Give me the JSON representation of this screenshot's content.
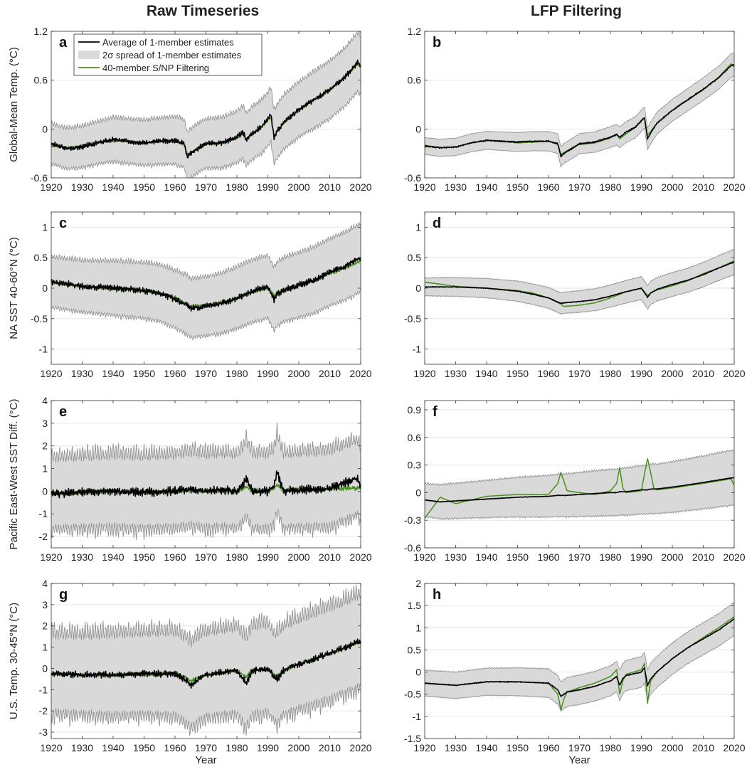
{
  "column_titles": [
    "Raw Timeseries",
    "LFP Filtering"
  ],
  "legend": {
    "avg_label": "Average of 1-member estimates",
    "spread_label": "2σ spread of 1-member estimates",
    "snp_label": "40-member S/NP Filtering"
  },
  "colors": {
    "avg": "#000000",
    "spread_fill": "#d9d9d9",
    "spread_edge": "#8c8c8c",
    "snp": "#4a8f1e",
    "grid": "#e6e6e6"
  },
  "chart_data": [
    {
      "panel": "a",
      "type": "line",
      "column": "Raw Timeseries",
      "ylabel": "Global-Mean Temp. (°C)",
      "xlabel": "",
      "xlim": [
        1920,
        2020
      ],
      "ylim": [
        -0.6,
        1.2
      ],
      "xticks": [
        "1920",
        "1930",
        "1940",
        "1950",
        "1960",
        "1970",
        "1980",
        "1990",
        "2000",
        "2010",
        "2020"
      ],
      "yticks": [
        "-0.6",
        "0",
        "0.6",
        "1.2"
      ],
      "ytick_values": [
        -0.6,
        0,
        0.6,
        1.2
      ],
      "spread_half_width": 0.22,
      "spread_growth": 0.12,
      "spread_seasonal": 0.07,
      "avg_noise": 0.03,
      "x": [
        1920,
        1925,
        1930,
        1935,
        1940,
        1945,
        1950,
        1955,
        1960,
        1963,
        1964,
        1965,
        1968,
        1970,
        1975,
        1980,
        1982,
        1983,
        1985,
        1988,
        1990,
        1991,
        1992,
        1993,
        1995,
        2000,
        2005,
        2010,
        2015,
        2019,
        2020
      ],
      "series": [
        {
          "role": "average",
          "values": [
            -0.18,
            -0.24,
            -0.22,
            -0.17,
            -0.13,
            -0.15,
            -0.17,
            -0.15,
            -0.14,
            -0.18,
            -0.34,
            -0.3,
            -0.22,
            -0.18,
            -0.17,
            -0.1,
            -0.04,
            -0.13,
            -0.05,
            0.03,
            0.12,
            0.18,
            -0.1,
            -0.03,
            0.08,
            0.24,
            0.36,
            0.48,
            0.64,
            0.82,
            0.78
          ]
        },
        {
          "role": "snp",
          "values": [
            -0.2,
            -0.23,
            -0.22,
            -0.17,
            -0.14,
            -0.15,
            -0.17,
            -0.16,
            -0.15,
            -0.18,
            -0.31,
            -0.29,
            -0.22,
            -0.19,
            -0.17,
            -0.11,
            -0.06,
            -0.12,
            -0.06,
            0.02,
            0.11,
            0.14,
            -0.08,
            -0.03,
            0.07,
            0.23,
            0.36,
            0.48,
            0.64,
            0.8,
            0.76
          ]
        }
      ]
    },
    {
      "panel": "b",
      "type": "line",
      "column": "LFP Filtering",
      "ylabel": "",
      "xlabel": "",
      "xlim": [
        1920,
        2020
      ],
      "ylim": [
        -0.6,
        1.2
      ],
      "xticks": [
        "1920",
        "1930",
        "1940",
        "1950",
        "1960",
        "1970",
        "1980",
        "1990",
        "2000",
        "2010",
        "2020"
      ],
      "yticks": [
        "-0.6",
        "0",
        "0.6",
        "1.2"
      ],
      "ytick_values": [
        -0.6,
        0,
        0.6,
        1.2
      ],
      "spread_half_width": 0.1,
      "spread_growth": 0.04,
      "spread_seasonal": 0.01,
      "avg_noise": 0.008,
      "x": [
        1920,
        1925,
        1930,
        1935,
        1940,
        1945,
        1950,
        1955,
        1960,
        1963,
        1964,
        1965,
        1968,
        1970,
        1975,
        1980,
        1982,
        1983,
        1985,
        1988,
        1990,
        1991,
        1992,
        1993,
        1995,
        2000,
        2005,
        2010,
        2015,
        2019,
        2020
      ],
      "series": [
        {
          "role": "average",
          "values": [
            -0.21,
            -0.23,
            -0.22,
            -0.17,
            -0.14,
            -0.15,
            -0.16,
            -0.15,
            -0.15,
            -0.18,
            -0.34,
            -0.3,
            -0.23,
            -0.18,
            -0.16,
            -0.1,
            -0.07,
            -0.1,
            -0.04,
            0.02,
            0.1,
            0.14,
            -0.12,
            -0.05,
            0.07,
            0.23,
            0.36,
            0.49,
            0.63,
            0.78,
            0.79
          ]
        },
        {
          "role": "snp",
          "values": [
            -0.2,
            -0.23,
            -0.22,
            -0.17,
            -0.14,
            -0.15,
            -0.17,
            -0.16,
            -0.15,
            -0.18,
            -0.31,
            -0.29,
            -0.22,
            -0.19,
            -0.17,
            -0.11,
            -0.06,
            -0.12,
            -0.06,
            0.02,
            0.11,
            0.14,
            -0.08,
            -0.03,
            0.07,
            0.23,
            0.36,
            0.48,
            0.64,
            0.8,
            0.76
          ]
        }
      ]
    },
    {
      "panel": "c",
      "type": "line",
      "column": "Raw Timeseries",
      "ylabel": "NA SST 40-60°N (°C)",
      "xlabel": "",
      "xlim": [
        1920,
        2020
      ],
      "ylim": [
        -1.25,
        1.25
      ],
      "xticks": [
        "1920",
        "1930",
        "1940",
        "1950",
        "1960",
        "1970",
        "1980",
        "1990",
        "2000",
        "2010",
        "2020"
      ],
      "yticks": [
        "-1",
        "-0.5",
        "0",
        "0.5",
        "1"
      ],
      "ytick_values": [
        -1,
        -0.5,
        0,
        0.5,
        1
      ],
      "spread_half_width": 0.38,
      "spread_growth": 0.15,
      "spread_seasonal": 0.1,
      "avg_noise": 0.05,
      "x": [
        1920,
        1930,
        1940,
        1950,
        1955,
        1960,
        1964,
        1965,
        1970,
        1975,
        1980,
        1985,
        1990,
        1992,
        1993,
        1995,
        2000,
        2005,
        2010,
        2015,
        2020
      ],
      "series": [
        {
          "role": "average",
          "values": [
            0.1,
            0.03,
            0.0,
            -0.04,
            -0.08,
            -0.18,
            -0.28,
            -0.33,
            -0.3,
            -0.25,
            -0.16,
            -0.05,
            0.02,
            -0.18,
            -0.1,
            -0.03,
            0.05,
            0.13,
            0.26,
            0.36,
            0.5
          ]
        },
        {
          "role": "snp",
          "values": [
            0.1,
            0.03,
            0.0,
            -0.04,
            -0.08,
            -0.16,
            -0.26,
            -0.3,
            -0.28,
            -0.24,
            -0.16,
            -0.06,
            0.0,
            -0.12,
            -0.08,
            -0.03,
            0.04,
            0.12,
            0.24,
            0.33,
            0.45
          ]
        }
      ]
    },
    {
      "panel": "d",
      "type": "line",
      "column": "LFP Filtering",
      "ylabel": "",
      "xlabel": "",
      "xlim": [
        1920,
        2020
      ],
      "ylim": [
        -1.25,
        1.25
      ],
      "xticks": [
        "1920",
        "1930",
        "1940",
        "1950",
        "1960",
        "1970",
        "1980",
        "1990",
        "2000",
        "2010",
        "2020"
      ],
      "yticks": [
        "-1",
        "-0.5",
        "0",
        "0.5",
        "1"
      ],
      "ytick_values": [
        -1,
        -0.5,
        0,
        0.5,
        1
      ],
      "spread_half_width": 0.14,
      "spread_growth": 0.06,
      "spread_seasonal": 0.02,
      "avg_noise": 0.006,
      "x": [
        1920,
        1930,
        1940,
        1950,
        1955,
        1960,
        1964,
        1965,
        1970,
        1975,
        1980,
        1985,
        1990,
        1992,
        1993,
        1995,
        2000,
        2005,
        2010,
        2015,
        2020
      ],
      "series": [
        {
          "role": "average",
          "values": [
            0.02,
            0.02,
            0.0,
            -0.05,
            -0.1,
            -0.16,
            -0.25,
            -0.24,
            -0.22,
            -0.19,
            -0.13,
            -0.06,
            0.0,
            -0.15,
            -0.08,
            -0.02,
            0.06,
            0.13,
            0.22,
            0.33,
            0.43
          ]
        },
        {
          "role": "snp",
          "values": [
            0.1,
            0.03,
            0.0,
            -0.04,
            -0.08,
            -0.16,
            -0.26,
            -0.3,
            -0.28,
            -0.24,
            -0.16,
            -0.06,
            0.0,
            -0.12,
            -0.08,
            -0.03,
            0.04,
            0.12,
            0.24,
            0.33,
            0.45
          ]
        }
      ]
    },
    {
      "panel": "e",
      "type": "line",
      "column": "Raw Timeseries",
      "ylabel": "Pacific East-West SST Diff. (°C)",
      "xlabel": "",
      "xlim": [
        1920,
        2020
      ],
      "ylim": [
        -2.5,
        4
      ],
      "xticks": [
        "1920",
        "1930",
        "1940",
        "1950",
        "1960",
        "1970",
        "1980",
        "1990",
        "2000",
        "2010",
        "2020"
      ],
      "yticks": [
        "-2",
        "-1",
        "0",
        "1",
        "2",
        "3",
        "4"
      ],
      "ytick_values": [
        -2,
        -1,
        0,
        1,
        2,
        3,
        4
      ],
      "spread_half_width": 1.35,
      "spread_growth": 0.1,
      "spread_seasonal": 0.8,
      "avg_noise": 0.18,
      "x": [
        1920,
        1930,
        1940,
        1950,
        1960,
        1965,
        1970,
        1975,
        1980,
        1982,
        1983,
        1985,
        1990,
        1992,
        1993,
        1995,
        2000,
        2010,
        2019,
        2020
      ],
      "series": [
        {
          "role": "average",
          "values": [
            -0.1,
            -0.05,
            0.0,
            -0.05,
            0.0,
            0.1,
            0.0,
            0.05,
            0.0,
            0.3,
            0.6,
            0.0,
            0.0,
            0.2,
            0.85,
            0.0,
            0.05,
            0.1,
            0.6,
            0.2
          ]
        },
        {
          "role": "snp",
          "values": [
            -0.1,
            -0.05,
            0.0,
            -0.05,
            0.0,
            0.05,
            0.0,
            0.0,
            0.0,
            0.1,
            0.2,
            0.0,
            0.0,
            0.1,
            0.3,
            0.0,
            0.05,
            0.1,
            0.15,
            0.15
          ]
        }
      ]
    },
    {
      "panel": "f",
      "type": "line",
      "column": "LFP Filtering",
      "ylabel": "",
      "xlabel": "",
      "xlim": [
        1920,
        2020
      ],
      "ylim": [
        -0.6,
        1.0
      ],
      "xticks": [
        "1920",
        "1930",
        "1940",
        "1950",
        "1960",
        "1970",
        "1980",
        "1990",
        "2000",
        "2010",
        "2020"
      ],
      "yticks": [
        "-0.6",
        "-0.3",
        "0",
        "0.3",
        "0.6",
        "0.9"
      ],
      "ytick_values": [
        -0.6,
        -0.3,
        0,
        0.3,
        0.6,
        0.9
      ],
      "spread_half_width": 0.17,
      "spread_growth": 0.12,
      "spread_seasonal": 0.025,
      "avg_noise": 0.003,
      "x": [
        1920,
        1925,
        1930,
        1940,
        1950,
        1960,
        1963,
        1964,
        1965,
        1966,
        1970,
        1975,
        1980,
        1982,
        1983,
        1984,
        1985,
        1990,
        1991,
        1992,
        1993,
        1994,
        1995,
        2000,
        2010,
        2019,
        2020
      ],
      "series": [
        {
          "role": "average",
          "values": [
            -0.08,
            -0.1,
            -0.09,
            -0.07,
            -0.05,
            -0.04,
            -0.03,
            -0.03,
            -0.03,
            -0.03,
            -0.02,
            -0.01,
            0.0,
            0.0,
            0.01,
            0.01,
            0.01,
            0.03,
            0.03,
            0.03,
            0.04,
            0.04,
            0.04,
            0.06,
            0.11,
            0.16,
            0.16
          ]
        },
        {
          "role": "snp",
          "values": [
            -0.28,
            -0.05,
            -0.12,
            -0.04,
            -0.02,
            -0.02,
            0.1,
            0.22,
            0.12,
            0.02,
            0.0,
            -0.02,
            0.02,
            0.1,
            0.27,
            0.05,
            0.0,
            0.02,
            0.2,
            0.37,
            0.22,
            0.05,
            0.03,
            0.05,
            0.1,
            0.15,
            0.08
          ]
        }
      ]
    },
    {
      "panel": "g",
      "type": "line",
      "column": "Raw Timeseries",
      "ylabel": "U.S. Temp. 30-45°N (°C)",
      "xlabel": "Year",
      "xlim": [
        1920,
        2020
      ],
      "ylim": [
        -3.3,
        4
      ],
      "xticks": [
        "1920",
        "1930",
        "1940",
        "1950",
        "1960",
        "1970",
        "1980",
        "1990",
        "2000",
        "2010",
        "2020"
      ],
      "yticks": [
        "-3",
        "-2",
        "-1",
        "0",
        "1",
        "2",
        "3",
        "4"
      ],
      "ytick_values": [
        -3,
        -2,
        -1,
        0,
        1,
        2,
        3,
        4
      ],
      "spread_half_width": 1.6,
      "spread_growth": 0.35,
      "spread_seasonal": 0.9,
      "avg_noise": 0.15,
      "x": [
        1920,
        1930,
        1940,
        1950,
        1960,
        1964,
        1965,
        1968,
        1970,
        1975,
        1980,
        1983,
        1985,
        1990,
        1992,
        1993,
        1995,
        2000,
        2005,
        2010,
        2015,
        2020
      ],
      "series": [
        {
          "role": "average",
          "values": [
            -0.25,
            -0.3,
            -0.3,
            -0.25,
            -0.25,
            -0.6,
            -0.8,
            -0.45,
            -0.3,
            -0.2,
            -0.1,
            -0.7,
            -0.1,
            0.0,
            -0.4,
            -0.5,
            -0.1,
            0.2,
            0.45,
            0.7,
            1.0,
            1.3
          ]
        },
        {
          "role": "snp",
          "values": [
            -0.25,
            -0.3,
            -0.3,
            -0.25,
            -0.25,
            -0.45,
            -0.6,
            -0.4,
            -0.3,
            -0.2,
            -0.1,
            -0.4,
            -0.1,
            0.0,
            -0.3,
            -0.35,
            -0.1,
            0.2,
            0.45,
            0.7,
            0.95,
            1.25
          ]
        }
      ]
    },
    {
      "panel": "h",
      "type": "line",
      "column": "LFP Filtering",
      "ylabel": "",
      "xlabel": "Year",
      "xlim": [
        1920,
        2020
      ],
      "ylim": [
        -1.5,
        2
      ],
      "xticks": [
        "1920",
        "1930",
        "1940",
        "1950",
        "1960",
        "1970",
        "1980",
        "1990",
        "2000",
        "2010",
        "2020"
      ],
      "yticks": [
        "-1.5",
        "-1",
        "-0.5",
        "0",
        "0.5",
        "1",
        "1.5",
        "2"
      ],
      "ytick_values": [
        -1.5,
        -1,
        -0.5,
        0,
        0.5,
        1,
        1.5,
        2
      ],
      "spread_half_width": 0.28,
      "spread_growth": 0.08,
      "spread_seasonal": 0.03,
      "avg_noise": 0.01,
      "x": [
        1920,
        1930,
        1940,
        1950,
        1960,
        1963,
        1964,
        1965,
        1966,
        1970,
        1975,
        1980,
        1982,
        1983,
        1984,
        1985,
        1990,
        1991,
        1992,
        1993,
        1995,
        2000,
        2005,
        2010,
        2015,
        2020
      ],
      "series": [
        {
          "role": "average",
          "values": [
            -0.25,
            -0.3,
            -0.22,
            -0.22,
            -0.25,
            -0.4,
            -0.55,
            -0.5,
            -0.45,
            -0.4,
            -0.32,
            -0.2,
            -0.1,
            -0.3,
            -0.15,
            -0.08,
            0.0,
            0.1,
            -0.3,
            -0.15,
            0.0,
            0.3,
            0.55,
            0.75,
            0.95,
            1.2
          ]
        },
        {
          "role": "snp",
          "values": [
            -0.25,
            -0.3,
            -0.22,
            -0.22,
            -0.25,
            -0.5,
            -0.85,
            -0.6,
            -0.45,
            -0.35,
            -0.25,
            -0.1,
            0.05,
            -0.5,
            -0.2,
            -0.05,
            0.05,
            0.2,
            -0.7,
            -0.2,
            0.0,
            0.3,
            0.55,
            0.78,
            1.0,
            1.25
          ]
        }
      ]
    }
  ]
}
